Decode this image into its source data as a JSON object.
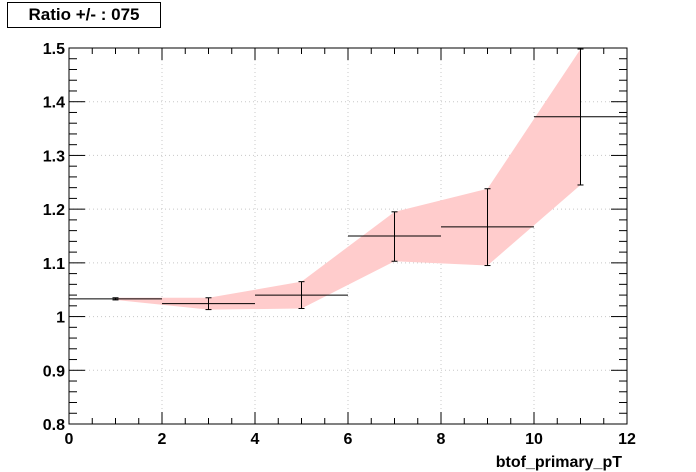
{
  "chart_data": {
    "type": "line",
    "title": "Ratio +/- : 075",
    "xlabel": "btof_primary_pT",
    "ylabel": "",
    "xlim": [
      0,
      12
    ],
    "ylim": [
      0.8,
      1.5
    ],
    "x_ticks": [
      "0",
      "2",
      "4",
      "6",
      "8",
      "10",
      "12"
    ],
    "y_ticks": [
      "0.8",
      "0.9",
      "1",
      "1.1",
      "1.2",
      "1.3",
      "1.4",
      "1.5"
    ],
    "grid": true,
    "band_color": "#ffcccc",
    "line_color": "#000000",
    "series": [
      {
        "points": [
          {
            "x": 1,
            "xlo": 0,
            "xhi": 2,
            "y": 1.033,
            "ylo": 1.031,
            "yhi": 1.035
          },
          {
            "x": 3,
            "xlo": 2,
            "xhi": 4,
            "y": 1.024,
            "ylo": 1.013,
            "yhi": 1.035
          },
          {
            "x": 5,
            "xlo": 4,
            "xhi": 6,
            "y": 1.04,
            "ylo": 1.015,
            "yhi": 1.065
          },
          {
            "x": 7,
            "xlo": 6,
            "xhi": 8,
            "y": 1.15,
            "ylo": 1.103,
            "yhi": 1.195
          },
          {
            "x": 9,
            "xlo": 8,
            "xhi": 10,
            "y": 1.167,
            "ylo": 1.095,
            "yhi": 1.238
          },
          {
            "x": 11,
            "xlo": 10,
            "xhi": 12,
            "y": 1.372,
            "ylo": 1.245,
            "yhi": 1.498
          }
        ]
      }
    ]
  }
}
